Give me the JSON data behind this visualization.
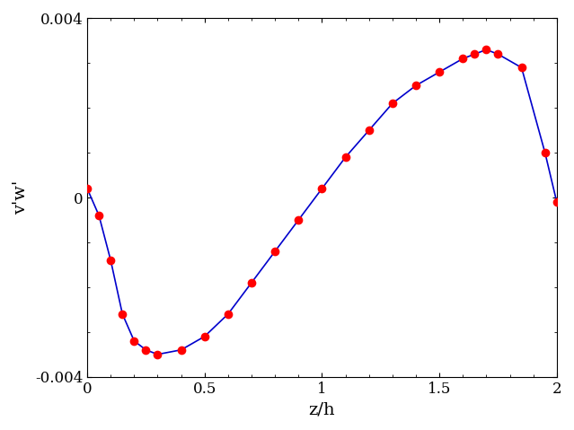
{
  "x": [
    0.0,
    0.05,
    0.1,
    0.15,
    0.2,
    0.25,
    0.3,
    0.4,
    0.5,
    0.6,
    0.7,
    0.8,
    0.9,
    1.0,
    1.1,
    1.2,
    1.3,
    1.4,
    1.5,
    1.6,
    1.65,
    1.7,
    1.75,
    1.85,
    1.95,
    2.0
  ],
  "y": [
    0.0002,
    -0.0004,
    -0.0014,
    -0.0026,
    -0.0032,
    -0.0034,
    -0.0035,
    -0.0034,
    -0.0031,
    -0.0026,
    -0.0019,
    -0.0012,
    -0.0005,
    0.0002,
    0.0009,
    0.0015,
    0.0021,
    0.0025,
    0.0028,
    0.0031,
    0.0032,
    0.0033,
    0.0032,
    0.0029,
    0.001,
    -0.0001
  ],
  "line_color": "#0000cc",
  "marker_color": "#ff0000",
  "marker_size": 7,
  "line_width": 1.2,
  "xlabel": "z/h",
  "ylabel": "v'w'",
  "xlim": [
    0,
    2
  ],
  "ylim": [
    -0.004,
    0.004
  ],
  "xticks": [
    0,
    0.5,
    1.0,
    1.5,
    2.0
  ],
  "xticklabels": [
    "0",
    "0.5",
    "1",
    "1.5",
    "2"
  ],
  "yticks": [
    -0.004,
    0,
    0.004
  ],
  "yticklabels": [
    "-0.004",
    "0",
    "0.004"
  ],
  "xlabel_fontsize": 14,
  "ylabel_fontsize": 14,
  "tick_fontsize": 12,
  "figsize": [
    6.39,
    4.79
  ],
  "dpi": 100
}
